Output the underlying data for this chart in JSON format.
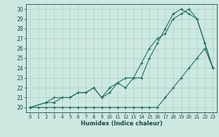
{
  "xlabel": "Humidex (Indice chaleur)",
  "xlim": [
    -0.5,
    23.5
  ],
  "ylim": [
    19.5,
    30.5
  ],
  "xticks": [
    0,
    1,
    2,
    3,
    4,
    5,
    6,
    7,
    8,
    9,
    10,
    11,
    12,
    13,
    14,
    15,
    16,
    17,
    18,
    19,
    20,
    21,
    22,
    23
  ],
  "yticks": [
    20,
    21,
    22,
    23,
    24,
    25,
    26,
    27,
    28,
    29,
    30
  ],
  "bg_color": "#cde8e0",
  "grid_color": "#a8cfc5",
  "line_color": "#1a6e62",
  "line1_x": [
    0,
    1,
    2,
    3,
    4,
    5,
    6,
    7,
    8,
    9,
    10,
    11,
    12,
    13,
    14,
    15,
    16,
    17,
    18,
    19,
    20,
    21,
    22,
    23
  ],
  "line1_y": [
    20,
    20,
    20,
    20,
    20,
    20,
    20,
    20,
    20,
    20,
    20,
    20,
    20,
    20,
    20,
    20,
    20,
    21,
    22,
    23,
    24,
    25,
    26,
    24
  ],
  "line2_x": [
    0,
    2,
    3,
    4,
    5,
    6,
    7,
    8,
    9,
    10,
    11,
    12,
    13,
    14,
    15,
    16,
    17,
    18,
    19,
    20,
    21,
    22,
    23
  ],
  "line2_y": [
    20,
    20.5,
    20.5,
    21,
    21,
    21.5,
    21.5,
    22,
    21,
    22,
    22.5,
    23,
    23,
    24.5,
    26,
    27,
    27.5,
    29,
    29.5,
    30,
    29,
    26.5,
    24
  ],
  "line3_x": [
    0,
    2,
    3,
    4,
    5,
    6,
    7,
    8,
    9,
    10,
    11,
    12,
    13,
    14,
    15,
    16,
    17,
    18,
    19,
    20,
    21,
    22,
    23
  ],
  "line3_y": [
    20,
    20.5,
    21,
    21,
    21,
    21.5,
    21.5,
    22,
    21,
    21.5,
    22.5,
    22,
    23,
    23,
    25,
    26.5,
    28,
    29.5,
    30,
    29.5,
    29,
    26.5,
    24
  ],
  "xticklabel_fontsize": 5.0,
  "yticklabel_fontsize": 5.5,
  "xlabel_fontsize": 6.0
}
